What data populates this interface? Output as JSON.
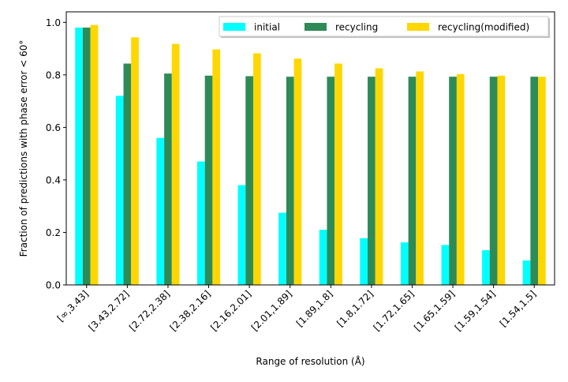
{
  "chart_data": {
    "type": "bar",
    "title": "",
    "xlabel": "Range of resolution (Å)",
    "ylabel": "Fraction of predictions with phase error < 60°",
    "ylim": [
      0,
      1.04
    ],
    "yticks": [
      "0.0",
      "0.2",
      "0.4",
      "0.6",
      "0.8",
      "1.0"
    ],
    "categories": [
      "[∞,3.43]",
      "[3.43,2.72]",
      "[2.72,2.38]",
      "[2.38,2.16]",
      "[2.16,2.01]",
      "[2.01,1.89]",
      "[1.89,1.8]",
      "[1.8,1.72]",
      "[1.72,1.65]",
      "[1.65,1.59]",
      "[1.59,1.54]",
      "[1.54,1.5]"
    ],
    "series": [
      {
        "name": "initial",
        "color": "#00FFFF",
        "values": [
          0.98,
          0.72,
          0.56,
          0.47,
          0.38,
          0.275,
          0.21,
          0.178,
          0.162,
          0.152,
          0.132,
          0.093
        ]
      },
      {
        "name": "recycling",
        "color": "#2E8B57",
        "values": [
          0.98,
          0.843,
          0.805,
          0.797,
          0.795,
          0.793,
          0.793,
          0.793,
          0.793,
          0.793,
          0.793,
          0.793
        ]
      },
      {
        "name": "recycling(modified)",
        "color": "#FFD700",
        "values": [
          0.99,
          0.943,
          0.918,
          0.897,
          0.882,
          0.862,
          0.843,
          0.825,
          0.813,
          0.803,
          0.797,
          0.793
        ]
      }
    ],
    "grid": false,
    "legend_position": "top-right"
  }
}
